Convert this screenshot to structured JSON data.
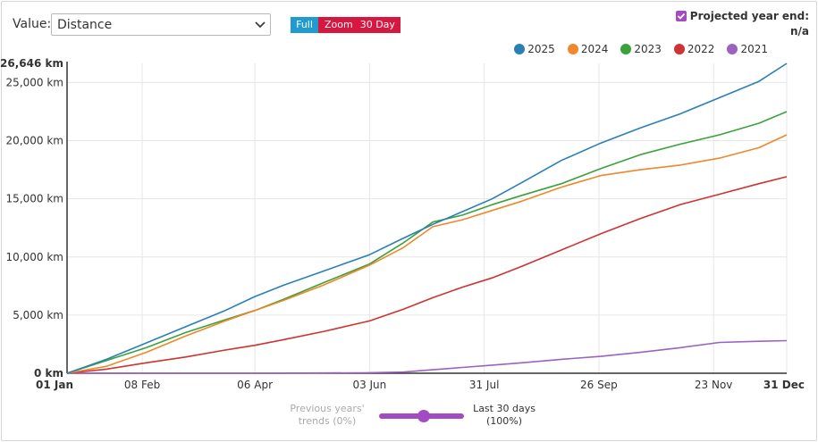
{
  "controls": {
    "value_label": "Value:",
    "selected_metric": "Distance",
    "buttons": {
      "full": "Full",
      "zoom": "Zoom",
      "day30": "30 Day"
    },
    "projected_label": "Projected year end:",
    "projected_value": "n/a",
    "projected_checked": true
  },
  "slider": {
    "left_label_1": "Previous years'",
    "left_label_2": "trends (0%)",
    "right_label_1": "Last 30 days",
    "right_label_2": "(100%)",
    "value_fraction": 1.0
  },
  "chart_data": {
    "type": "line",
    "x_labels": [
      "01 Jan",
      "08 Feb",
      "06 Apr",
      "03 Jun",
      "31 Jul",
      "26 Sep",
      "23 Nov",
      "31 Dec"
    ],
    "x_label_days": [
      0,
      38,
      95,
      153,
      211,
      269,
      327,
      364
    ],
    "y_ticks": [
      0,
      5000,
      10000,
      15000,
      20000,
      25000
    ],
    "y_tick_labels": [
      "0 km",
      "5,000 km",
      "10,000 km",
      "15,000 km",
      "20,000 km",
      "25,000 km"
    ],
    "y_max_label": "26,646 km",
    "ylim": [
      0,
      26646
    ],
    "xlim": [
      0,
      364
    ],
    "grid": true,
    "legend_position": "top-right",
    "series": [
      {
        "name": "2025",
        "color": "#2a7fb5",
        "x": [
          0,
          20,
          40,
          60,
          80,
          95,
          110,
          130,
          153,
          170,
          185,
          200,
          215,
          230,
          250,
          270,
          290,
          310,
          330,
          350,
          364
        ],
        "y": [
          0,
          1200,
          2600,
          4000,
          5400,
          6600,
          7600,
          8800,
          10200,
          11600,
          12800,
          13900,
          15000,
          16400,
          18300,
          19800,
          21100,
          22300,
          23700,
          25100,
          26646
        ]
      },
      {
        "name": "2024",
        "color": "#f0872a",
        "x": [
          0,
          20,
          40,
          60,
          80,
          95,
          110,
          130,
          153,
          170,
          185,
          200,
          215,
          230,
          250,
          270,
          290,
          310,
          330,
          350,
          364
        ],
        "y": [
          0,
          600,
          1800,
          3200,
          4500,
          5400,
          6300,
          7600,
          9300,
          10800,
          12600,
          13200,
          14000,
          14800,
          16000,
          17000,
          17500,
          17900,
          18500,
          19400,
          20500
        ]
      },
      {
        "name": "2023",
        "color": "#3aa23a",
        "x": [
          0,
          20,
          40,
          60,
          80,
          95,
          110,
          130,
          153,
          170,
          185,
          200,
          215,
          230,
          250,
          270,
          290,
          310,
          330,
          350,
          364
        ],
        "y": [
          0,
          1100,
          2200,
          3500,
          4600,
          5400,
          6400,
          7800,
          9400,
          11200,
          13000,
          13600,
          14500,
          15300,
          16300,
          17600,
          18800,
          19700,
          20500,
          21500,
          22500
        ]
      },
      {
        "name": "2022",
        "color": "#cf3232",
        "x": [
          0,
          20,
          40,
          60,
          80,
          95,
          110,
          130,
          153,
          170,
          185,
          200,
          215,
          230,
          250,
          270,
          290,
          310,
          330,
          350,
          364
        ],
        "y": [
          0,
          350,
          900,
          1400,
          2000,
          2400,
          2900,
          3600,
          4500,
          5500,
          6500,
          7400,
          8200,
          9200,
          10600,
          12000,
          13300,
          14500,
          15400,
          16300,
          16900
        ]
      },
      {
        "name": "2021",
        "color": "#9b62c4",
        "x": [
          0,
          100,
          150,
          170,
          185,
          200,
          215,
          230,
          250,
          270,
          290,
          310,
          330,
          350,
          364
        ],
        "y": [
          0,
          0,
          40,
          100,
          300,
          500,
          700,
          900,
          1200,
          1450,
          1800,
          2200,
          2650,
          2750,
          2800
        ]
      }
    ]
  }
}
